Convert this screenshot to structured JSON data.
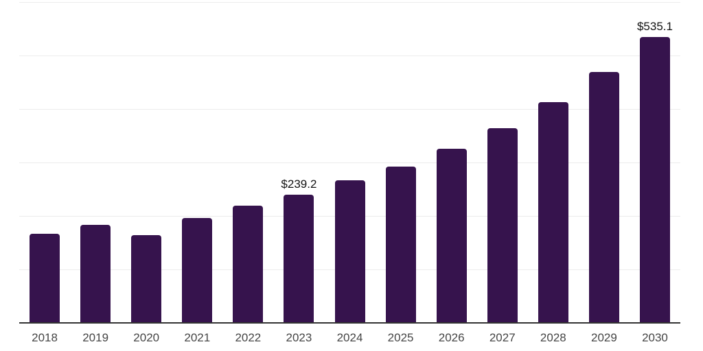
{
  "chart_data": {
    "type": "bar",
    "categories": [
      "2018",
      "2019",
      "2020",
      "2021",
      "2022",
      "2023",
      "2024",
      "2025",
      "2026",
      "2027",
      "2028",
      "2029",
      "2030"
    ],
    "values": [
      167.0,
      183.3,
      163.5,
      195.8,
      219.2,
      239.2,
      266.3,
      292.0,
      325.6,
      364.5,
      412.4,
      469.6,
      535.1
    ],
    "point_labels": [
      null,
      null,
      null,
      null,
      null,
      "$239.2",
      null,
      null,
      null,
      null,
      null,
      null,
      "$535.1"
    ],
    "title": "",
    "xlabel": "",
    "ylabel": "",
    "ylim": [
      0,
      600
    ],
    "gridline_step": 100,
    "grid": true,
    "legend": false,
    "colors": {
      "bar": "#36134D",
      "gridline": "#ECECEC",
      "axis_line": "#333333",
      "tick_label": "#454545",
      "value_label": "#121212",
      "background": "#FFFFFF"
    }
  }
}
